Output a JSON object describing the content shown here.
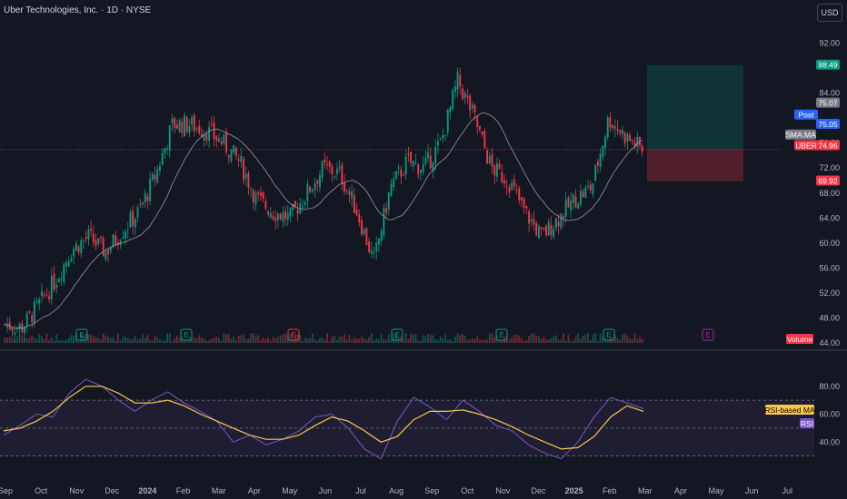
{
  "header": {
    "title": "Uber Technologies, Inc. · 1D · NYSE",
    "currency": "USD"
  },
  "price_axis": {
    "ticks": [
      "92.00",
      "84.00",
      "76.00",
      "72.00",
      "68.00",
      "64.00",
      "60.00",
      "56.00",
      "52.00",
      "48.00",
      "44.00"
    ],
    "labels": [
      {
        "text": "88.49",
        "color": "#089981"
      },
      {
        "text": "75.07",
        "color": "#787b86"
      },
      {
        "text": "Post",
        "color": "#2962ff"
      },
      {
        "text": "75.05",
        "color": "#2962ff"
      },
      {
        "text": "SMA:MA",
        "color": "#787b86"
      },
      {
        "text": "UBER",
        "color": "#f23645"
      },
      {
        "text": "74.96",
        "color": "#f23645"
      },
      {
        "text": "69.92",
        "color": "#f23645"
      },
      {
        "text": "Volume",
        "color": "#f23645"
      }
    ]
  },
  "rsi_axis": {
    "ticks": [
      "80.00",
      "60.00",
      "40.00"
    ],
    "labels": [
      {
        "text": "RSI-based MA",
        "color": "#f7c948"
      },
      {
        "text": "RSI",
        "color": "#7e57c2"
      }
    ]
  },
  "time_axis": [
    "Sep",
    "Oct",
    "Nov",
    "Dec",
    "2024",
    "Feb",
    "Mar",
    "Apr",
    "May",
    "Jun",
    "Jul",
    "Aug",
    "Sep",
    "Oct",
    "Nov",
    "Dec",
    "2025",
    "Feb",
    "Mar",
    "Apr",
    "May",
    "Jun",
    "Jul"
  ],
  "earnings_marker": "E",
  "colors": {
    "bg": "#131722",
    "up": "#089981",
    "down": "#f23645",
    "sma": "#9598a1",
    "rsi": "#7e57c2",
    "rsi_ma": "#f7c948"
  },
  "chart_data": {
    "type": "candlestick",
    "symbol": "UBER",
    "interval": "1D",
    "exchange": "NYSE",
    "price_range": [
      44,
      96
    ],
    "close_series": [
      {
        "x": "Sep",
        "y": 47
      },
      {
        "x": "Oct",
        "y": 46.5
      },
      {
        "x": "Nov",
        "y": 50
      },
      {
        "x": "mid-Nov",
        "y": 54
      },
      {
        "x": "Dec",
        "y": 59
      },
      {
        "x": "mid-Dec",
        "y": 61
      },
      {
        "x": "late-Dec",
        "y": 58.5
      },
      {
        "x": "2024",
        "y": 62
      },
      {
        "x": "mid-Jan",
        "y": 65
      },
      {
        "x": "Feb",
        "y": 71
      },
      {
        "x": "mid-Feb",
        "y": 79
      },
      {
        "x": "Mar",
        "y": 79
      },
      {
        "x": "mid-Mar",
        "y": 78
      },
      {
        "x": "Apr",
        "y": 76
      },
      {
        "x": "mid-Apr",
        "y": 73
      },
      {
        "x": "May",
        "y": 67
      },
      {
        "x": "mid-May",
        "y": 65
      },
      {
        "x": "Jun",
        "y": 64
      },
      {
        "x": "mid-Jun",
        "y": 68
      },
      {
        "x": "Jul",
        "y": 72
      },
      {
        "x": "mid-Jul",
        "y": 71
      },
      {
        "x": "Aug",
        "y": 65
      },
      {
        "x": "early-Aug",
        "y": 57
      },
      {
        "x": "mid-Aug",
        "y": 69
      },
      {
        "x": "Sep",
        "y": 73
      },
      {
        "x": "mid-Sep",
        "y": 72
      },
      {
        "x": "Oct",
        "y": 76
      },
      {
        "x": "early-Oct",
        "y": 86
      },
      {
        "x": "mid-Oct",
        "y": 80
      },
      {
        "x": "Nov",
        "y": 72
      },
      {
        "x": "mid-Nov",
        "y": 70
      },
      {
        "x": "Dec",
        "y": 65
      },
      {
        "x": "mid-Dec",
        "y": 61
      },
      {
        "x": "2025",
        "y": 64
      },
      {
        "x": "mid-Jan",
        "y": 67
      },
      {
        "x": "Feb",
        "y": 69
      },
      {
        "x": "mid-Feb",
        "y": 80
      },
      {
        "x": "late-Feb",
        "y": 77
      },
      {
        "x": "Mar",
        "y": 75
      }
    ],
    "last_price": 74.96,
    "post_price": 75.05,
    "sma_value": 75.07,
    "position": {
      "target": 88.49,
      "entry": 74.96,
      "stop": 69.92
    },
    "rsi": {
      "range": [
        20,
        100
      ],
      "bands": [
        70,
        30
      ],
      "values": [
        45,
        52,
        60,
        58,
        75,
        85,
        80,
        70,
        62,
        70,
        76,
        68,
        62,
        55,
        40,
        45,
        38,
        42,
        48,
        58,
        60,
        50,
        35,
        28,
        55,
        72,
        65,
        56,
        70,
        62,
        52,
        48,
        38,
        32,
        28,
        40,
        58,
        72,
        68,
        64
      ]
    },
    "rsi_ma_values": [
      48,
      50,
      55,
      62,
      72,
      80,
      80,
      75,
      68,
      68,
      70,
      66,
      60,
      55,
      50,
      45,
      42,
      42,
      45,
      52,
      58,
      55,
      48,
      40,
      44,
      56,
      62,
      62,
      63,
      60,
      56,
      51,
      45,
      40,
      35,
      36,
      44,
      58,
      66,
      62
    ]
  }
}
